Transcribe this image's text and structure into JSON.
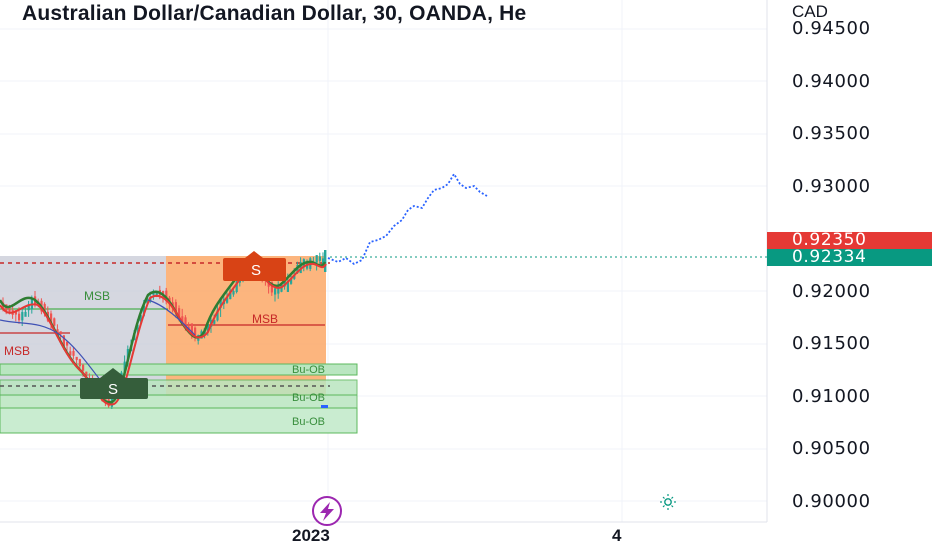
{
  "header": {
    "title": "Australian Dollar/Canadian Dollar, 30, OANDA, He",
    "currency": "CAD"
  },
  "price_axis": {
    "labels": [
      "0.94500",
      "0.94000",
      "0.93500",
      "0.93000",
      "0.92000",
      "0.91500",
      "0.91000",
      "0.90500",
      "0.90000"
    ],
    "ask_badge": "0.92350",
    "bid_badge": "0.92334",
    "ask_color": "#e53935",
    "bid_color": "#089981"
  },
  "time_axis": {
    "labels": [
      "2023",
      "4"
    ]
  },
  "overlays": {
    "msb_label": "MSB",
    "bu_ob_label": "Bu-OB",
    "signal_label": "S"
  },
  "icons": {
    "lightning": "lightning-bolt-icon",
    "session": "sun-moon-icon"
  }
}
